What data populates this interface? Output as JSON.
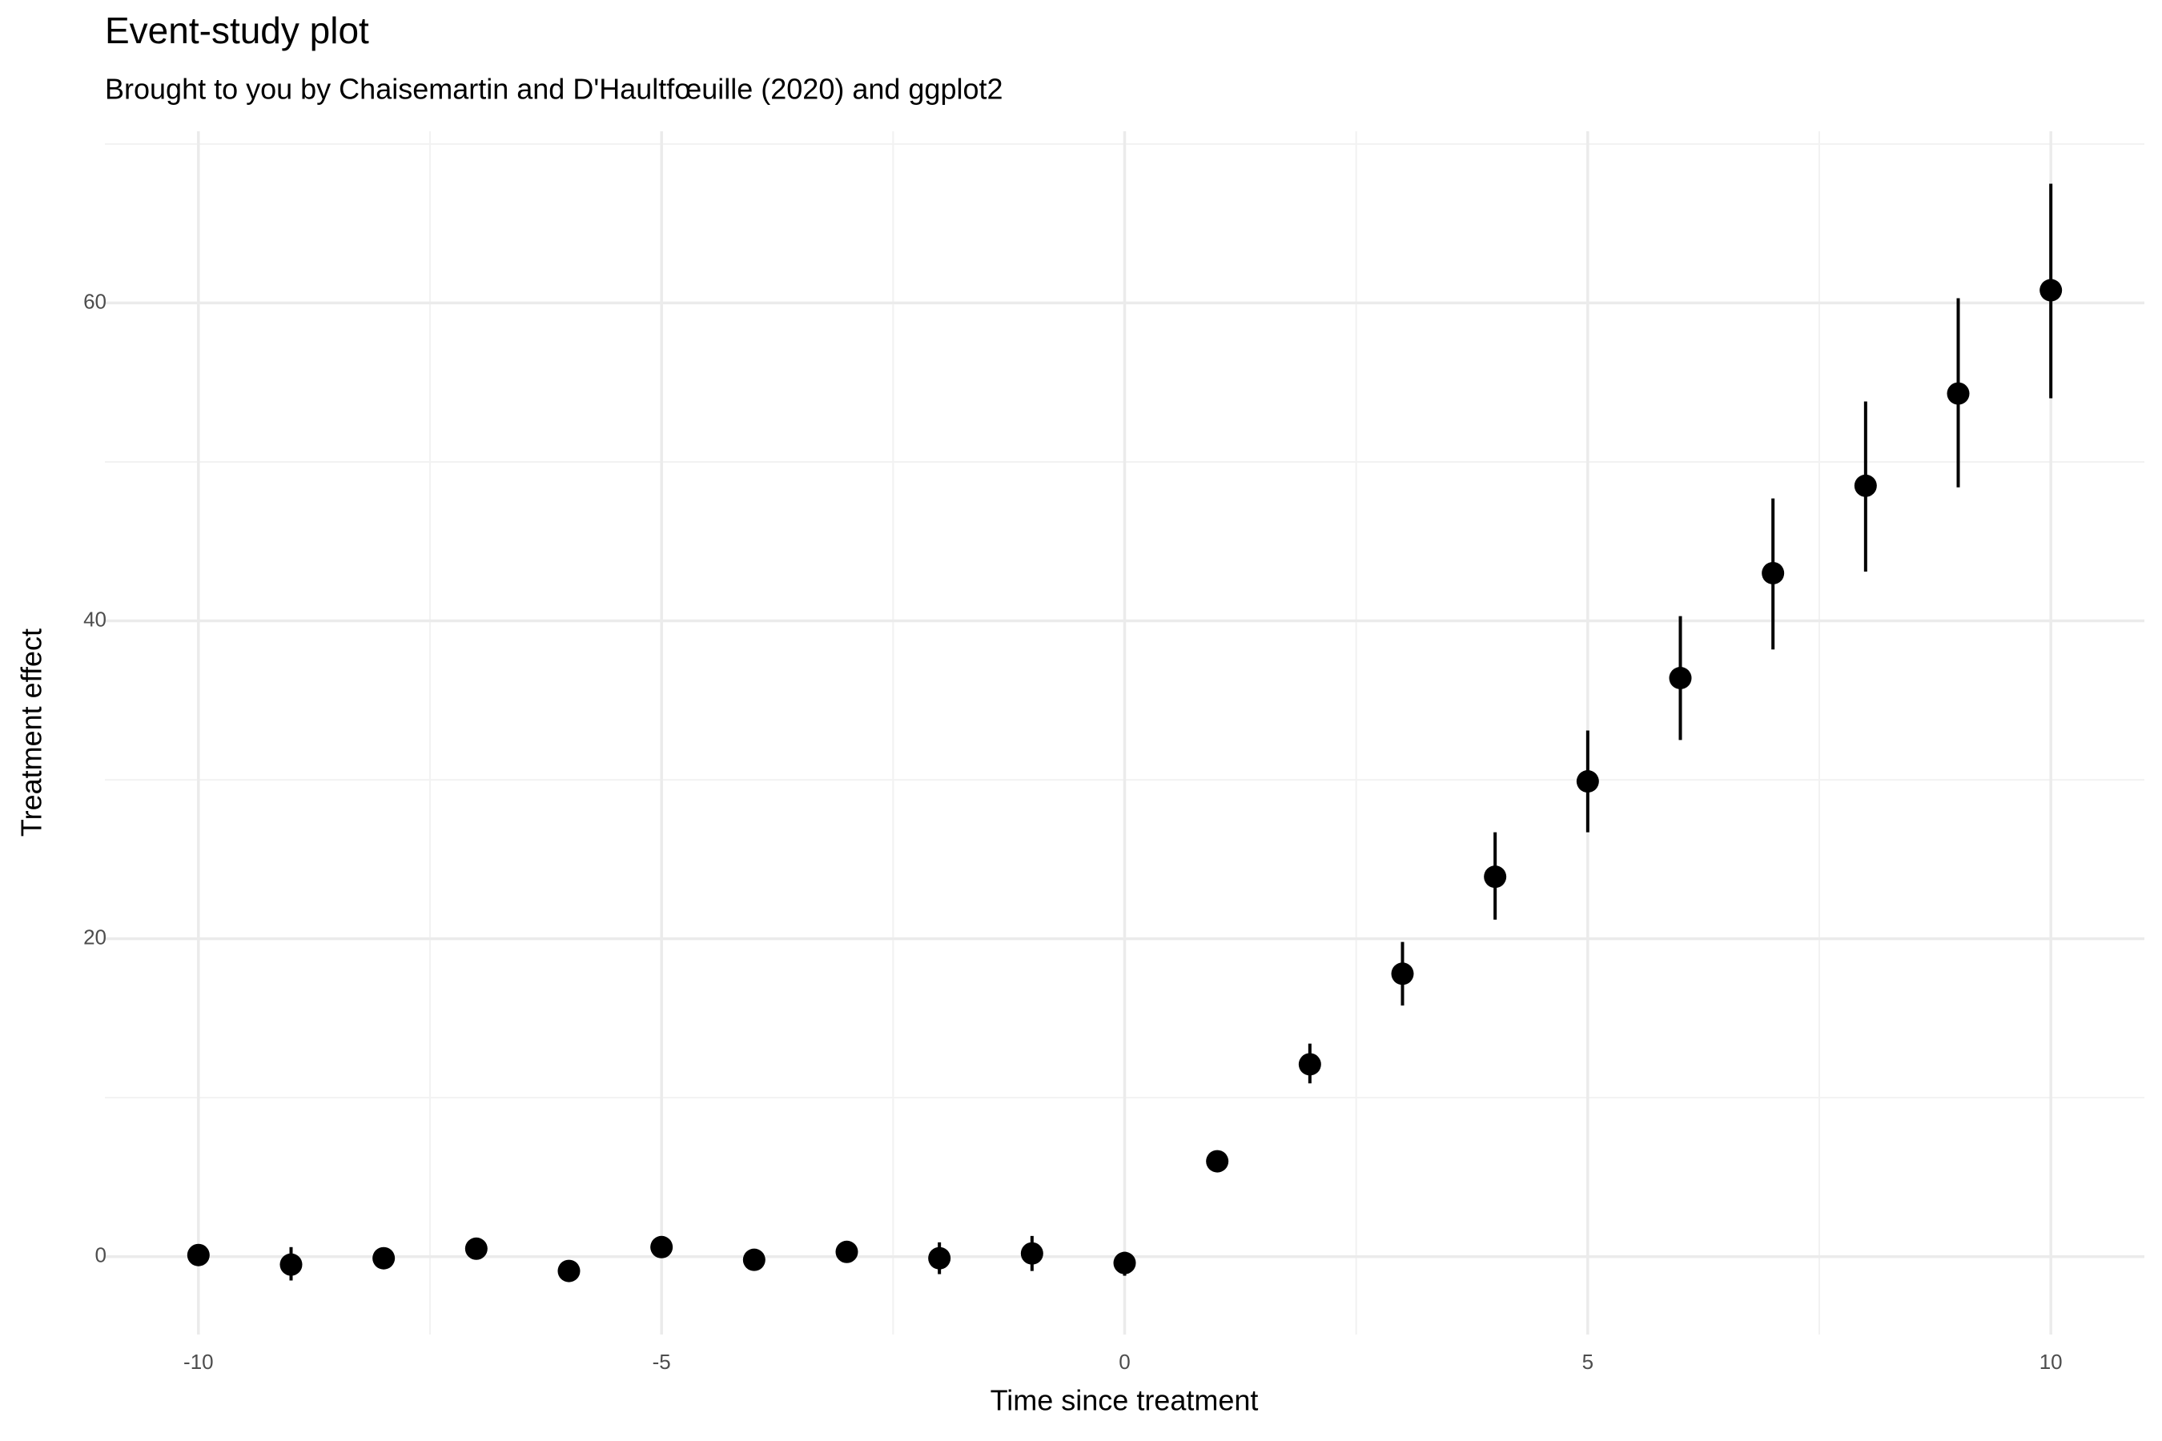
{
  "chart_data": {
    "type": "errorbar",
    "title": "Event-study plot",
    "subtitle": "Brought to you by Chaisemartin and D'Haultfœuille (2020) and ggplot2",
    "x_label": "Time since treatment",
    "y_label": "Treatment effect",
    "x": [
      -10,
      -9,
      -8,
      -7,
      -6,
      -5,
      -4,
      -3,
      -2,
      -1,
      0,
      1,
      2,
      3,
      4,
      5,
      6,
      7,
      8,
      9,
      10
    ],
    "values": [
      0.1,
      -0.5,
      -0.1,
      0.5,
      -0.9,
      0.6,
      -0.2,
      0.3,
      -0.1,
      0.2,
      -0.4,
      6.0,
      12.1,
      17.8,
      23.9,
      29.9,
      36.4,
      43.0,
      48.5,
      54.3,
      60.8
    ],
    "lower": [
      -0.4,
      -1.5,
      -0.6,
      0.0,
      -1.4,
      0.1,
      -0.7,
      -0.2,
      -1.1,
      -0.9,
      -1.2,
      5.5,
      10.9,
      15.8,
      21.2,
      26.7,
      32.5,
      38.2,
      43.1,
      48.4,
      54.0
    ],
    "upper": [
      0.6,
      0.6,
      0.4,
      1.0,
      -0.4,
      1.1,
      0.3,
      0.8,
      0.9,
      1.3,
      0.3,
      6.5,
      13.4,
      19.8,
      26.7,
      33.1,
      40.3,
      47.7,
      53.8,
      60.3,
      67.5
    ],
    "color": "#000000",
    "xlim": [
      -11.01,
      11.01
    ],
    "ylim": [
      -4.9,
      70.8
    ],
    "xticks": [
      -10,
      -5,
      0,
      5,
      10
    ],
    "yticks": [
      0,
      20,
      40,
      60
    ],
    "minor_xticks": [
      -7.5,
      -2.5,
      2.5,
      7.5
    ],
    "minor_yticks": [
      10,
      30,
      50,
      70
    ],
    "grid": true
  }
}
